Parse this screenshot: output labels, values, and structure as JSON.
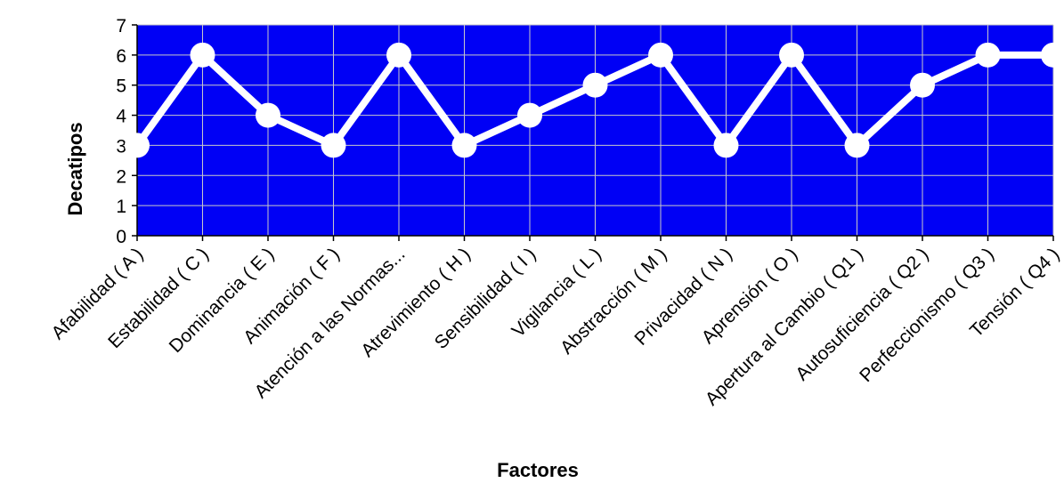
{
  "chart_data": {
    "type": "line",
    "title": "",
    "xlabel": "Factores",
    "ylabel": "Decatipos",
    "ylim": [
      0,
      7
    ],
    "yticks": [
      0,
      1,
      2,
      3,
      4,
      5,
      6,
      7
    ],
    "grid": true,
    "legend": "none",
    "colors": {
      "plot_background": "#0000f5",
      "line": "#ffffff",
      "grid": "#c8c8c8"
    },
    "categories": [
      "Afabilidad ( A )",
      "Estabilidad ( C )",
      "Dominancia ( E )",
      "Animación ( F )",
      "Atención a las Normas...",
      "Atrevimiento ( H )",
      "Sensibilidad ( I )",
      "Vigilancia ( L )",
      "Abstracción ( M )",
      "Privacidad ( N )",
      "Aprensión ( O )",
      "Apertura al Cambio ( Q1 )",
      "Autosuficiencia ( Q2 )",
      "Perfeccionismo ( Q3 )",
      "Tensión ( Q4 )"
    ],
    "values": [
      3,
      6,
      4,
      3,
      6,
      3,
      4,
      5,
      6,
      3,
      6,
      3,
      5,
      6,
      6
    ]
  }
}
